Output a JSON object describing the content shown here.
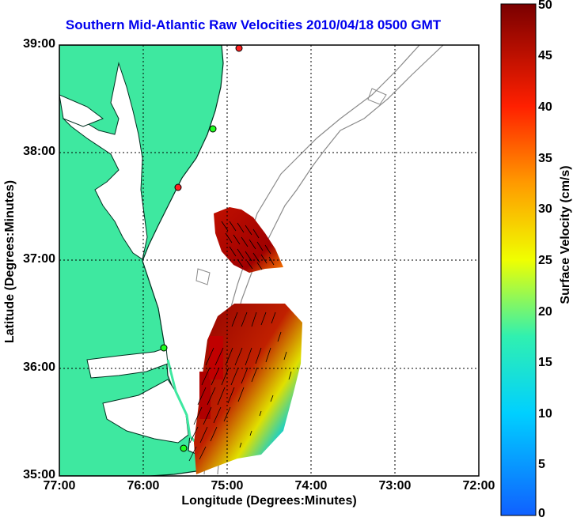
{
  "title": "Southern Mid-Atlantic Raw Velocities 2010/04/18 0500 GMT",
  "axes": {
    "xlabel": "Longitude (Degrees:Minutes)",
    "ylabel": "Latitude (Degrees:Minutes)",
    "lat_ticks": [
      "39:00",
      "38:00",
      "37:00",
      "36:00",
      "35:00"
    ],
    "lon_ticks": [
      "77:00",
      "76:00",
      "75:00",
      "74:00",
      "73:00",
      "72:00"
    ],
    "lat_range": [
      35,
      39
    ],
    "lon_range": [
      -77,
      -72
    ]
  },
  "colorbar": {
    "label": "Surface Velocity (cm/s)",
    "ticks": [
      "50",
      "45",
      "40",
      "35",
      "30",
      "25",
      "20",
      "15",
      "10",
      "5",
      "0"
    ],
    "range": [
      0,
      50
    ]
  },
  "colors": {
    "land": "#3ee8a0",
    "title": "#0000ee"
  }
}
